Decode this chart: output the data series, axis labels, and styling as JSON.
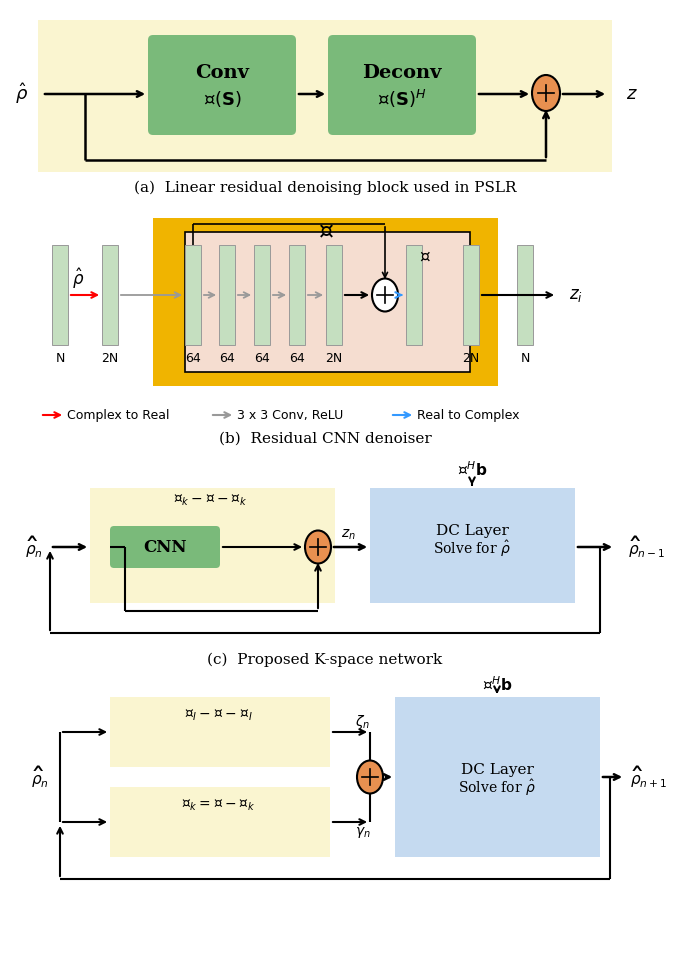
{
  "fig_width": 6.3,
  "fig_height": 9.38,
  "bg_color": "#ffffff",
  "panel_a": {
    "bg_color": "#faf5d0",
    "conv_color": "#7aba7a",
    "deconv_color": "#7aba7a",
    "sum_color": "#e89050",
    "input_label": "$\\hat{\\rho}$",
    "output_label": "$z$",
    "conv_label1": "Conv",
    "conv_label2": "$\\mathcal{G}(\\mathbf{S})$",
    "deconv_label1": "Deconv",
    "deconv_label2": "$\\mathcal{G}(\\mathbf{S})^H$",
    "caption": "(a)  Linear residual denoising block used in PSLR"
  },
  "panel_b": {
    "outer_color": "#f0b400",
    "inner_color": "#f5ddd0",
    "bar_color": "#c5dfc0",
    "sum_color": "#ffffff",
    "D_label": "$\\mathcal{D}$",
    "N_label": "$\\mathcal{N}$",
    "input_label": "$\\hat{\\rho}$",
    "output_label": "$z_i$",
    "bar_labels": [
      "N",
      "2N",
      "64",
      "64",
      "64",
      "64",
      "2N",
      "2N",
      "N"
    ],
    "legend_red": "Complex to Real",
    "legend_gray": "3 x 3 Conv, ReLU",
    "legend_blue": "Real to Complex",
    "caption": "(b)  Residual CNN denoiser"
  },
  "panel_c": {
    "left_color": "#faf5d0",
    "right_color": "#c5daf0",
    "cnn_color": "#7aba7a",
    "sum_color": "#e89050",
    "block_label": "$\\mathcal{D}_k - \\mathcal{I} - \\mathcal{N}_k$",
    "cnn_label": "CNN",
    "dc_label1": "DC Layer",
    "dc_label2": "Solve for $\\hat{\\rho}$",
    "input_label": "$\\widehat{\\rho}_n$",
    "output_label": "$\\widehat{\\rho}_{n-1}$",
    "zn_label": "$z_n$",
    "ah_label": "$\\mathcal{A}^H\\mathbf{b}$",
    "caption": "(c)  Proposed K-space network"
  },
  "panel_d": {
    "left_color": "#faf5d0",
    "right_color": "#c5daf0",
    "sum_color": "#e89050",
    "label_top": "$\\mathcal{D}_I - \\mathcal{I} - \\mathcal{N}_I$",
    "label_bot": "$\\mathcal{D}_k = \\mathcal{I} - \\mathcal{N}_k$",
    "dc_label1": "DC Layer",
    "dc_label2": "Solve for $\\hat{\\rho}$",
    "input_label": "$\\widehat{\\rho}_n$",
    "output_label": "$\\widehat{\\rho}_{n+1}$",
    "zeta_label": "$\\zeta_n$",
    "gamma_label": "$\\gamma_n$",
    "ah_label": "$\\mathcal{A}^H\\mathbf{b}$"
  }
}
